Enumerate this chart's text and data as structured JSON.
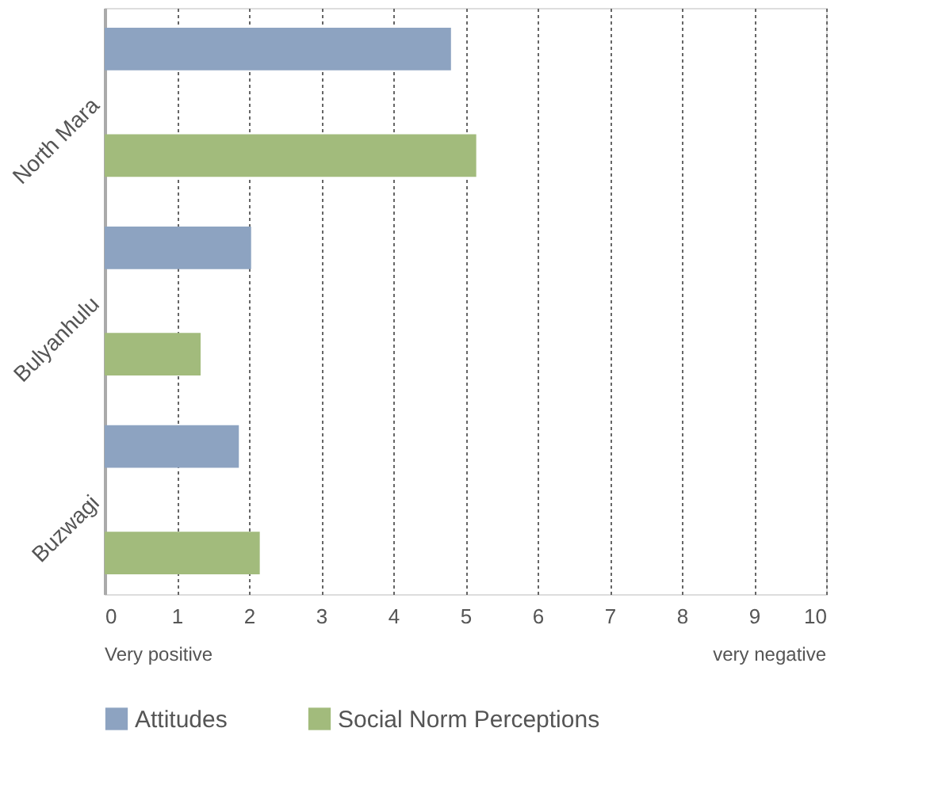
{
  "chart_data": {
    "type": "bar",
    "orientation": "horizontal",
    "categories": [
      "North Mara",
      "Bulyanhulu",
      "Buzwagi"
    ],
    "series": [
      {
        "name": "Attitudes",
        "color": "#8da3c1",
        "values": [
          4.8,
          2.03,
          1.86
        ]
      },
      {
        "name": "Social Norm Perceptions",
        "color": "#a2bb7c",
        "values": [
          5.15,
          1.33,
          2.15
        ]
      }
    ],
    "xlim": [
      0,
      10
    ],
    "xticks": [
      0,
      1,
      2,
      3,
      4,
      5,
      6,
      7,
      8,
      9,
      10
    ],
    "grid": "x",
    "legend": "bottom",
    "annotations": [
      "Very positive",
      "very negative"
    ]
  }
}
